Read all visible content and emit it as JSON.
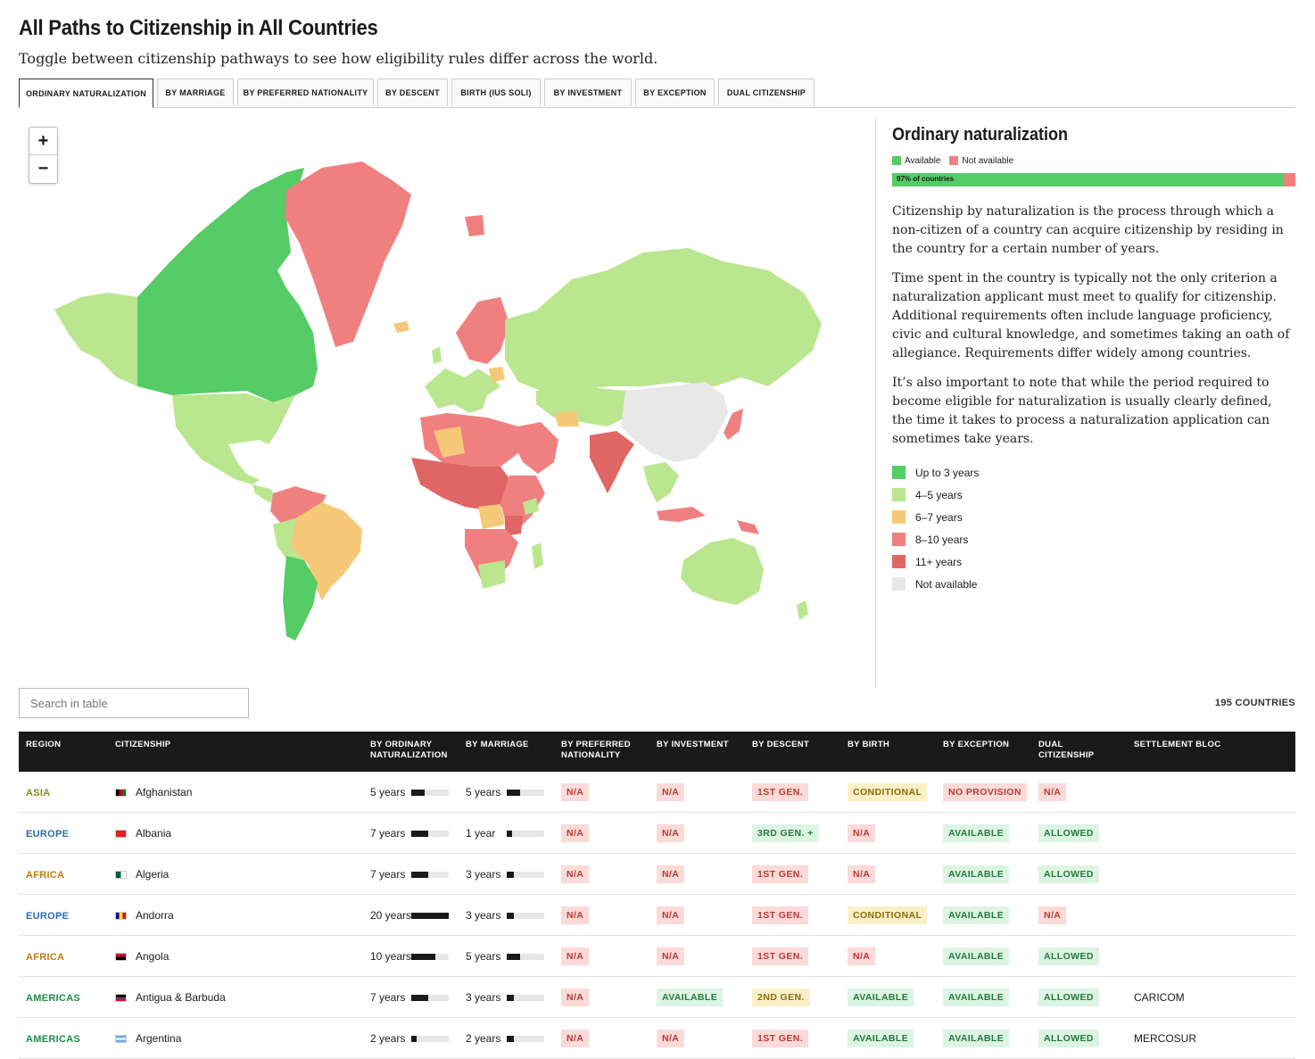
{
  "title": "All Paths to Citizenship in All Countries",
  "subtitle": "Toggle between citizenship pathways to see how eligibility rules differ across the world.",
  "tabs": [
    {
      "label": "ORDINARY NATURALIZATION",
      "active": true
    },
    {
      "label": "BY MARRIAGE"
    },
    {
      "label": "BY PREFERRED NATIONALITY"
    },
    {
      "label": "BY DESCENT"
    },
    {
      "label": "BIRTH (IUS SOLI)"
    },
    {
      "label": "BY INVESTMENT"
    },
    {
      "label": "BY EXCEPTION"
    },
    {
      "label": "DUAL CITIZENSHIP"
    }
  ],
  "map": {
    "zoom_in": "+",
    "zoom_out": "−",
    "colors": {
      "up_to_3": "#55cc66",
      "y4_5": "#b9e68f",
      "y6_7": "#f5c977",
      "y8_10": "#f08080",
      "y11_plus": "#e06666",
      "not_available": "#e8e8e8"
    }
  },
  "panel": {
    "heading": "Ordinary naturalization",
    "available_label": "Available",
    "not_available_label": "Not available",
    "available_color": "#55cc66",
    "not_available_color": "#f08080",
    "available_share": 0.97,
    "bar_label": "97% of countries",
    "paragraphs": [
      "Citizenship by naturalization is the process through which a non-citizen of a country can acquire citizenship by residing in the country for a certain number of years.",
      "Time spent in the country is typically not the only criterion a naturalization applicant must meet to qualify for citizenship. Additional requirements often include language proficiency, civic and cultural knowledge, and sometimes taking an oath of allegiance. Requirements differ widely among countries.",
      "It’s also important to note that while the period required to become eligible for naturalization is usually clearly defined, the time it takes to process a naturalization application can sometimes take years."
    ],
    "legend": [
      {
        "label": "Up to 3 years",
        "color": "#55cc66"
      },
      {
        "label": "4–5 years",
        "color": "#b9e68f"
      },
      {
        "label": "6–7 years",
        "color": "#f5c977"
      },
      {
        "label": "8–10 years",
        "color": "#f08080"
      },
      {
        "label": "11+ years",
        "color": "#e06666"
      },
      {
        "label": "Not available",
        "color": "#e8e8e8"
      }
    ]
  },
  "table": {
    "search_placeholder": "Search in table",
    "count": "195 COUNTRIES",
    "headers": [
      "REGION",
      "CITIZENSHIP",
      "BY ORDINARY NATURALIZATION",
      "BY MARRIAGE",
      "BY PREFERRED NATIONALITY",
      "BY INVESTMENT",
      "BY DESCENT",
      "BY BIRTH",
      "BY EXCEPTION",
      "DUAL CITIZENSHIP",
      "SETTLEMENT BLOC"
    ],
    "region_colors": {
      "ASIA": "#8a8a1a",
      "EUROPE": "#2b6cb0",
      "AFRICA": "#c27c0e",
      "AMERICAS": "#1e8a4a"
    },
    "rows": [
      {
        "region": "ASIA",
        "country": "Afghanistan",
        "nat": "5 years",
        "nat_frac": 0.35,
        "mar": "5 years",
        "mar_frac": 0.35,
        "pref": "N/A",
        "inv": "N/A",
        "desc": "1ST GEN.",
        "birth": "CONDITIONAL",
        "exc": "NO PROVISION",
        "dual": "N/A",
        "bloc": ""
      },
      {
        "region": "EUROPE",
        "country": "Albania",
        "nat": "7 years",
        "nat_frac": 0.45,
        "mar": "1 year",
        "mar_frac": 0.15,
        "pref": "N/A",
        "inv": "N/A",
        "desc": "3RD GEN. +",
        "birth": "N/A",
        "exc": "AVAILABLE",
        "dual": "ALLOWED",
        "bloc": ""
      },
      {
        "region": "AFRICA",
        "country": "Algeria",
        "nat": "7 years",
        "nat_frac": 0.45,
        "mar": "3 years",
        "mar_frac": 0.2,
        "pref": "N/A",
        "inv": "N/A",
        "desc": "1ST GEN.",
        "birth": "N/A",
        "exc": "AVAILABLE",
        "dual": "ALLOWED",
        "bloc": ""
      },
      {
        "region": "EUROPE",
        "country": "Andorra",
        "nat": "20 years",
        "nat_frac": 1.0,
        "mar": "3 years",
        "mar_frac": 0.2,
        "pref": "N/A",
        "inv": "N/A",
        "desc": "1ST GEN.",
        "birth": "CONDITIONAL",
        "exc": "AVAILABLE",
        "dual": "N/A",
        "bloc": ""
      },
      {
        "region": "AFRICA",
        "country": "Angola",
        "nat": "10 years",
        "nat_frac": 0.65,
        "mar": "5 years",
        "mar_frac": 0.35,
        "pref": "N/A",
        "inv": "N/A",
        "desc": "1ST GEN.",
        "birth": "N/A",
        "exc": "AVAILABLE",
        "dual": "ALLOWED",
        "bloc": ""
      },
      {
        "region": "AMERICAS",
        "country": "Antigua & Barbuda",
        "nat": "7 years",
        "nat_frac": 0.45,
        "mar": "3 years",
        "mar_frac": 0.2,
        "pref": "N/A",
        "inv": "AVAILABLE",
        "desc": "2ND GEN.",
        "birth": "AVAILABLE",
        "exc": "AVAILABLE",
        "dual": "ALLOWED",
        "bloc": "CARICOM"
      },
      {
        "region": "AMERICAS",
        "country": "Argentina",
        "nat": "2 years",
        "nat_frac": 0.15,
        "mar": "2 years",
        "mar_frac": 0.2,
        "pref": "N/A",
        "inv": "N/A",
        "desc": "1ST GEN.",
        "birth": "AVAILABLE",
        "exc": "AVAILABLE",
        "dual": "ALLOWED",
        "bloc": "MERCOSUR"
      }
    ]
  }
}
